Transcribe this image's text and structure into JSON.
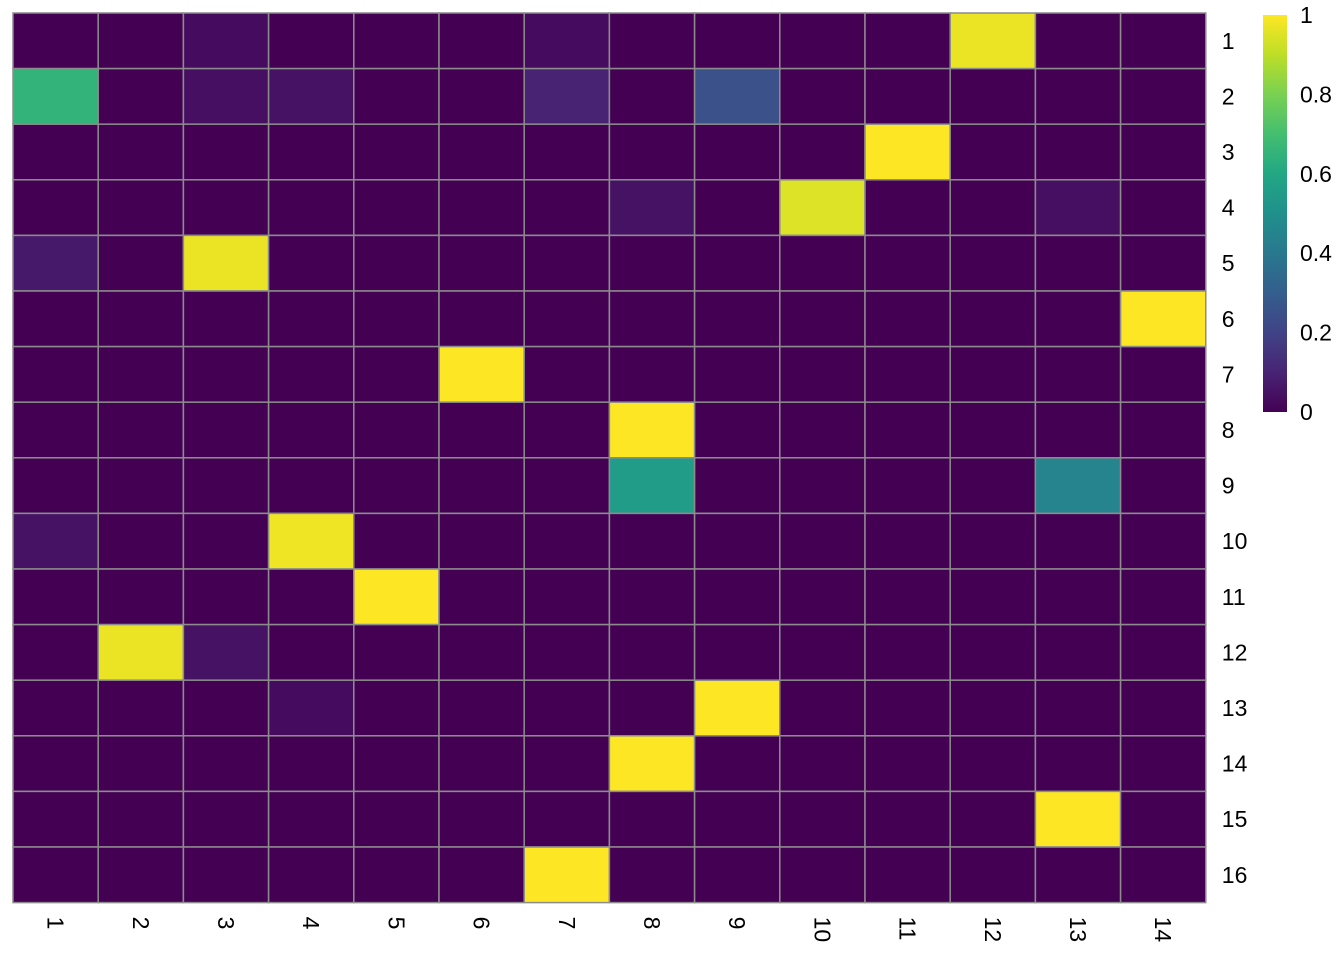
{
  "chart_data": {
    "type": "heatmap",
    "title": "",
    "xlabel": "",
    "ylabel": "",
    "x_labels": [
      "1",
      "2",
      "3",
      "4",
      "5",
      "6",
      "7",
      "8",
      "9",
      "10",
      "11",
      "12",
      "13",
      "14"
    ],
    "y_labels": [
      "1",
      "2",
      "3",
      "4",
      "5",
      "6",
      "7",
      "8",
      "9",
      "10",
      "11",
      "12",
      "13",
      "14",
      "15",
      "16"
    ],
    "values": [
      [
        0,
        0,
        0.03,
        0,
        0,
        0,
        0.03,
        0,
        0,
        0,
        0,
        0.97,
        0,
        0
      ],
      [
        0.65,
        0,
        0.04,
        0.05,
        0,
        0,
        0.1,
        0,
        0.25,
        0,
        0,
        0,
        0,
        0
      ],
      [
        0,
        0,
        0,
        0,
        0,
        0,
        0,
        0,
        0,
        0,
        1.0,
        0,
        0,
        0
      ],
      [
        0,
        0,
        0,
        0,
        0,
        0,
        0,
        0.05,
        0,
        0.95,
        0,
        0,
        0.04,
        0
      ],
      [
        0.07,
        0,
        0.97,
        0,
        0,
        0,
        0,
        0,
        0,
        0,
        0,
        0,
        0,
        0
      ],
      [
        0,
        0,
        0,
        0,
        0,
        0,
        0,
        0,
        0,
        0,
        0,
        0,
        0,
        1.0
      ],
      [
        0,
        0,
        0,
        0,
        0,
        1.0,
        0,
        0,
        0,
        0,
        0,
        0,
        0,
        0
      ],
      [
        0,
        0,
        0,
        0,
        0,
        0,
        0,
        1.0,
        0,
        0,
        0,
        0,
        0,
        0
      ],
      [
        0,
        0,
        0,
        0,
        0,
        0,
        0,
        0.55,
        0,
        0,
        0,
        0,
        0.45,
        0
      ],
      [
        0.05,
        0,
        0,
        0.98,
        0,
        0,
        0,
        0,
        0,
        0,
        0,
        0,
        0,
        0
      ],
      [
        0,
        0,
        0,
        0,
        1.0,
        0,
        0,
        0,
        0,
        0,
        0,
        0,
        0,
        0
      ],
      [
        0,
        0.97,
        0.05,
        0,
        0,
        0,
        0,
        0,
        0,
        0,
        0,
        0,
        0,
        0
      ],
      [
        0,
        0,
        0,
        0.03,
        0,
        0,
        0,
        0,
        1.0,
        0,
        0,
        0,
        0,
        0
      ],
      [
        0,
        0,
        0,
        0,
        0,
        0,
        0,
        1.0,
        0,
        0,
        0,
        0,
        0,
        0
      ],
      [
        0,
        0,
        0,
        0,
        0,
        0,
        0,
        0,
        0,
        0,
        0,
        0,
        1.0,
        0
      ],
      [
        0,
        0,
        0,
        0,
        0,
        0,
        1.0,
        0,
        0,
        0,
        0,
        0,
        0,
        0
      ]
    ],
    "colorscale": "viridis",
    "zlim": [
      0,
      1
    ],
    "legend_ticks": [
      {
        "value": 0,
        "label": "0"
      },
      {
        "value": 0.2,
        "label": "0.2"
      },
      {
        "value": 0.4,
        "label": "0.4"
      },
      {
        "value": 0.6,
        "label": "0.6"
      },
      {
        "value": 0.8,
        "label": "0.8"
      },
      {
        "value": 1,
        "label": "1"
      }
    ],
    "grid": true,
    "grid_color": "#8c8c8c",
    "legend_position": "top-right",
    "x_tick_rotation": "90 degrees (vertical)",
    "y_labels_side": "right"
  }
}
